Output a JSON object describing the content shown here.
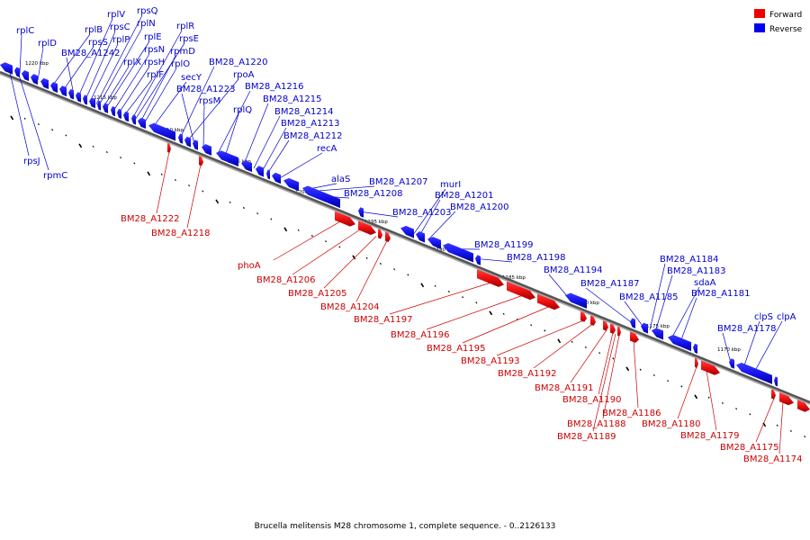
{
  "legend": {
    "forward_label": "Forward",
    "forward_color": "#ee0000",
    "reverse_label": "Reverse",
    "reverse_color": "#0000ee"
  },
  "caption": "Brucella melitensis M28 chromosome 1, complete sequence. - 0..2126133",
  "axis_color": "#555555",
  "ticks": [
    "1220 kbp",
    "1215 kbp",
    "1210 kbp",
    "1205 kbp",
    "1200 kbp",
    "1195 kbp",
    "1190 kbp",
    "1185 kbp",
    "1180 kbp",
    "1175 kbp",
    "1170 kbp"
  ],
  "reverse_genes": [
    "rplC",
    "rplD",
    "rplB",
    "rpsS",
    "rplV",
    "rpsC",
    "rplP",
    "rpsQ",
    "rplN",
    "rplX",
    "rplE",
    "rpsN",
    "rpsH",
    "rplF",
    "rplR",
    "rpsE",
    "rpmD",
    "rplO",
    "BM28_A1242",
    "secY",
    "rpmC",
    "rpsJ",
    "BM28_A1220",
    "rpoA",
    "BM28_A1223",
    "rpsM",
    "BM28_A1216",
    "rplQ",
    "BM28_A1215",
    "BM28_A1214",
    "BM28_A1213",
    "BM28_A1212",
    "recA",
    "alaS",
    "BM28_A1207",
    "BM28_A1208",
    "murI",
    "BM28_A1201",
    "BM28_A1203",
    "BM28_A1200",
    "BM28_A1199",
    "BM28_A1198",
    "BM28_A1194",
    "BM28_A1187",
    "BM28_A1185",
    "BM28_A1184",
    "BM28_A1183",
    "sdaA",
    "BM28_A1181",
    "BM28_A1178",
    "clpS",
    "clpA"
  ],
  "forward_genes": [
    "BM28_A1222",
    "BM28_A1218",
    "phoA",
    "BM28_A1206",
    "BM28_A1205",
    "BM28_A1204",
    "BM28_A1197",
    "BM28_A1196",
    "BM28_A1195",
    "BM28_A1193",
    "BM28_A1192",
    "BM28_A1191",
    "BM28_A1190",
    "BM28_A1186",
    "BM28_A1188",
    "BM28_A1189",
    "BM28_A1180",
    "BM28_A1179",
    "BM28_A1175",
    "BM28_A1174"
  ]
}
